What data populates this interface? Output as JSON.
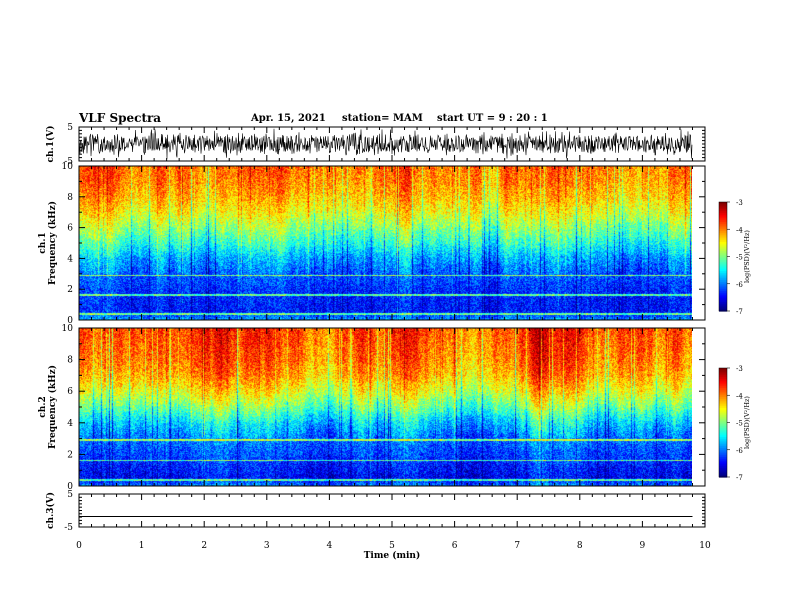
{
  "header": {
    "title": "VLF Spectra",
    "date": "Apr. 15, 2021",
    "station": "station= MAM",
    "start": "start  UT  =   9 : 20 : 1"
  },
  "chart_data": [
    {
      "type": "line",
      "name": "waveform-ch1",
      "ylabel": "ch.1(V)",
      "ylim": [
        -5,
        5
      ],
      "yticks": [
        -5,
        5
      ],
      "xlim": [
        0,
        10
      ],
      "description": "dense noisy waveform filling roughly -4 to +4 V, data ends near 9.8 min"
    },
    {
      "type": "heatmap",
      "name": "spectrogram-ch1",
      "ylabel": [
        "ch.1",
        "Frequency  (kHz)"
      ],
      "xlim": [
        0,
        10
      ],
      "ylim": [
        0,
        10
      ],
      "yticks": [
        0,
        2,
        4,
        6,
        8,
        10
      ],
      "data_end_min": 9.8,
      "colorbar": {
        "label": "log(PSD)(V²/Hz)",
        "range": [
          -7,
          -3
        ],
        "ticks": [
          -3,
          -4,
          -5,
          -6,
          -7
        ]
      },
      "profile_log_psd_by_freq_khz": {
        "freq": [
          0,
          0.5,
          1,
          2,
          3,
          4,
          5,
          6,
          7,
          8,
          9,
          10
        ],
        "value": [
          -5.9,
          -6.4,
          -6.4,
          -6.3,
          -6.1,
          -5.8,
          -5.3,
          -4.9,
          -4.5,
          -4.2,
          -4.0,
          -3.9
        ]
      }
    },
    {
      "type": "heatmap",
      "name": "spectrogram-ch2",
      "ylabel": [
        "ch.2",
        "Frequency  (kHz)"
      ],
      "xlim": [
        0,
        10
      ],
      "ylim": [
        0,
        10
      ],
      "yticks": [
        0,
        2,
        4,
        6,
        8,
        10
      ],
      "data_end_min": 9.8,
      "colorbar": {
        "label": "log(PSD)(V²/Hz)",
        "range": [
          -7,
          -3
        ],
        "ticks": [
          -3,
          -4,
          -5,
          -6,
          -7
        ]
      },
      "profile_log_psd_by_freq_khz": {
        "freq": [
          0,
          0.5,
          1,
          2,
          3,
          4,
          5,
          6,
          7,
          8,
          9,
          10
        ],
        "value": [
          -6.0,
          -6.5,
          -6.4,
          -6.2,
          -6.0,
          -5.6,
          -5.0,
          -4.5,
          -4.1,
          -3.9,
          -3.8,
          -3.7
        ]
      }
    },
    {
      "type": "line",
      "name": "waveform-ch3",
      "ylabel": "ch.3(V)",
      "ylim": [
        -5,
        5
      ],
      "yticks": [
        -5,
        5
      ],
      "xlim": [
        0,
        10
      ],
      "x": [
        0,
        9.8
      ],
      "y": [
        -1.8,
        -1.8
      ]
    }
  ],
  "xaxis": {
    "label": "Time  (min)",
    "ticks": [
      0,
      1,
      2,
      3,
      4,
      5,
      6,
      7,
      8,
      9,
      10
    ]
  }
}
